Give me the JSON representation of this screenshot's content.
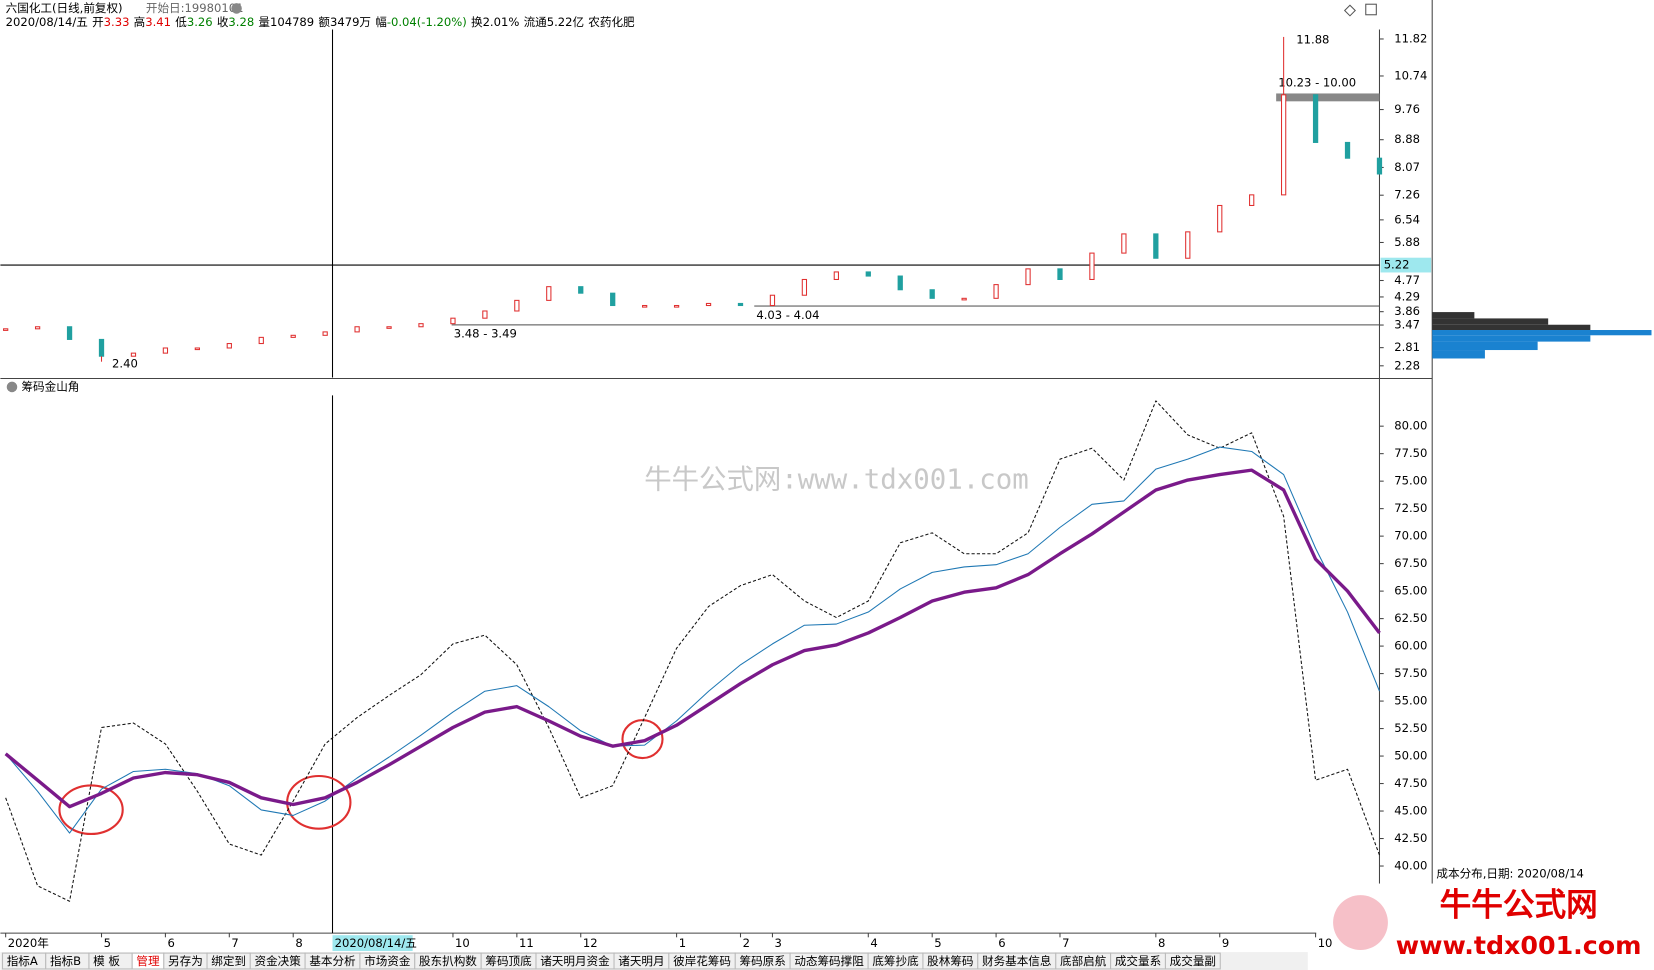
{
  "header": {
    "title": "六国化工(日线,前复权)",
    "start": "开始日:19980101"
  },
  "info": {
    "date": "2020/08/14/五",
    "items": [
      {
        "label": "开",
        "value": "3.33",
        "color": "#e00000"
      },
      {
        "label": "高",
        "value": "3.41",
        "color": "#e00000"
      },
      {
        "label": "低",
        "value": "3.26",
        "color": "#008000"
      },
      {
        "label": "收",
        "value": "3.28",
        "color": "#008000"
      },
      {
        "label": "量",
        "value": "104789",
        "color": "#000000"
      },
      {
        "label": "额",
        "value": "3479万",
        "color": "#000000"
      },
      {
        "label": "幅",
        "value": "-0.04(-1.20%)",
        "color": "#008000"
      },
      {
        "label": "换",
        "value": "2.01%",
        "color": "#000000"
      },
      {
        "label": "流通",
        "value": "5.22亿",
        "color": "#000000"
      }
    ],
    "sector": "农药化肥"
  },
  "chart_data": [
    {
      "type": "candle",
      "up_color": "#e03030",
      "down_color": "#20a0a0",
      "values": [
        3.36,
        3.42,
        3.05,
        2.56,
        2.65,
        2.8,
        2.8,
        2.93,
        3.11,
        3.17,
        3.27,
        3.42,
        3.42,
        3.51,
        3.67,
        3.88,
        4.19,
        4.59,
        4.4,
        4.04,
        4.04,
        4.04,
        4.1,
        4.04,
        4.34,
        4.8,
        5.02,
        4.9,
        4.5,
        4.25,
        4.25,
        4.65,
        5.11,
        4.8,
        5.57,
        6.13,
        5.42,
        6.19,
        6.96,
        7.27,
        10.19,
        8.8,
        8.34,
        7.88
      ],
      "ylim": [
        1.94,
        12.65
      ],
      "yticks": [
        11.82,
        10.74,
        9.76,
        8.88,
        8.07,
        7.26,
        6.54,
        5.88,
        4.77,
        4.29,
        3.86,
        3.47,
        2.81,
        2.28
      ],
      "cursor_value": 5.22,
      "high": 11.88,
      "low": {
        "value": 2.4,
        "label": "2.40"
      },
      "bands": [
        {
          "low": 10.0,
          "high": 10.23,
          "label": "10.23 - 10.00"
        },
        {
          "low": 4.03,
          "high": 4.04,
          "label": "4.03 - 4.04"
        },
        {
          "low": 3.48,
          "high": 3.49,
          "label": "3.48 - 3.49"
        }
      ]
    },
    {
      "type": "line",
      "title": "筹码金山角",
      "categories": [
        "2020年",
        null,
        null,
        "5",
        null,
        "6",
        null,
        "7",
        null,
        "8",
        null,
        null,
        null,
        null,
        "10",
        null,
        "11",
        null,
        "12",
        null,
        null,
        "1",
        null,
        "2",
        "3",
        null,
        null,
        "4",
        null,
        "5",
        null,
        "6",
        null,
        "7",
        null,
        null,
        "8",
        null,
        "9",
        null,
        null,
        "10",
        null,
        null
      ],
      "ylim": [
        33.9,
        82.8
      ],
      "yticks": [
        {
          "value": 80,
          "label": "80.00"
        },
        {
          "value": 77.5,
          "label": "77.50"
        },
        {
          "value": 75,
          "label": "75.00"
        },
        {
          "value": 72.5,
          "label": "72.50"
        },
        {
          "value": 70,
          "label": "70.00"
        },
        {
          "value": 67.5,
          "label": "67.50"
        },
        {
          "value": 65,
          "label": "65.00"
        },
        {
          "value": 62.5,
          "label": "62.50"
        },
        {
          "value": 60,
          "label": "60.00"
        },
        {
          "value": 57.5,
          "label": "57.50"
        },
        {
          "value": 55,
          "label": "55.00"
        },
        {
          "value": 52.5,
          "label": "52.50"
        },
        {
          "value": 50,
          "label": "50.00"
        },
        {
          "value": 47.5,
          "label": "47.50"
        },
        {
          "value": 45,
          "label": "45.00"
        },
        {
          "value": 42.5,
          "label": "42.50"
        },
        {
          "value": 40,
          "label": "40.00"
        }
      ],
      "series": [
        {
          "color": "#111111",
          "style": "dashed",
          "values": [
            46.2,
            38.2,
            36.8,
            52.6,
            53,
            51.1,
            46.8,
            42,
            41,
            45.9,
            51.1,
            53.5,
            55.5,
            57.4,
            60.2,
            61,
            58.3,
            52.6,
            46.2,
            47.3,
            53.5,
            59.8,
            63.6,
            65.5,
            66.5,
            64.1,
            62.6,
            64.1,
            69.4,
            70.3,
            68.4,
            68.4,
            70.3,
            77,
            78,
            75.1,
            82.3,
            79.2,
            78,
            79.4,
            71.8,
            47.8,
            48.8,
            41
          ]
        },
        {
          "color": "#1f78b4",
          "style": "thin",
          "values": [
            50.2,
            46.8,
            43,
            47,
            48.6,
            48.8,
            48.4,
            47.3,
            45.1,
            44.6,
            45.9,
            48,
            49.9,
            51.9,
            54,
            55.9,
            56.4,
            54.5,
            52.3,
            50.9,
            51,
            53.2,
            55.9,
            58.3,
            60.2,
            61.9,
            62,
            63.1,
            65.2,
            66.7,
            67.2,
            67.4,
            68.4,
            70.8,
            72.9,
            73.2,
            76.1,
            77,
            78.1,
            77.7,
            75.6,
            68.9,
            63.1,
            55.9
          ]
        },
        {
          "color": "#7a1a8a",
          "style": "thick",
          "values": [
            50.2,
            47.8,
            45.4,
            46.6,
            48,
            48.5,
            48.3,
            47.6,
            46.2,
            45.6,
            46.2,
            47.6,
            49.2,
            50.9,
            52.6,
            54,
            54.5,
            53.2,
            51.8,
            50.9,
            51.4,
            52.8,
            54.7,
            56.6,
            58.3,
            59.6,
            60.1,
            61.2,
            62.6,
            64.1,
            64.9,
            65.3,
            66.5,
            68.4,
            70.2,
            72.2,
            74.2,
            75.1,
            75.6,
            76,
            74.2,
            67.9,
            65,
            61.2
          ]
        }
      ]
    }
  ],
  "cost_distribution": "成本分布,日期: 2020/08/14",
  "watermark": "牛牛公式网:www.tdx001.com",
  "logo": {
    "title": "牛牛公式网",
    "url": "www.tdx001.com"
  },
  "tabs": [
    "指标A",
    "指标B",
    "模 板",
    "管理",
    "另存为",
    "绑定到",
    "资金决策",
    "基本分析",
    "市场资金",
    "股东扒构数",
    "筹码顶底",
    "诸天明月资金",
    "诸天明月",
    "彼岸花筹码",
    "筹码原系",
    "动态筹码撑阻",
    "底筹抄底",
    "股林筹码",
    "财务基本信息",
    "底部启航",
    "成交量系",
    "成交量副"
  ]
}
